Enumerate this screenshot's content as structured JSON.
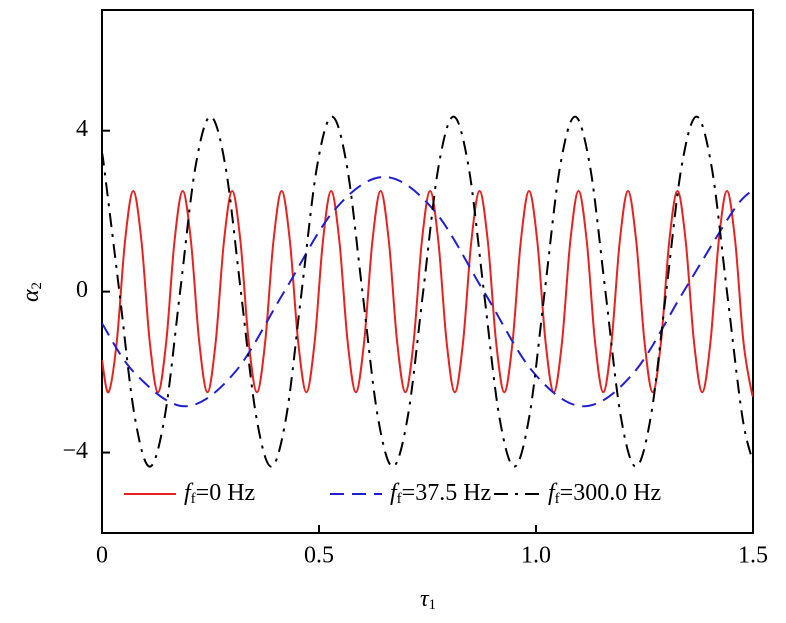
{
  "chart_data": {
    "type": "line",
    "x_label": "τ1",
    "y_label": "α2",
    "xlim": [
      0,
      1.5
    ],
    "ylim": [
      -6,
      7
    ],
    "xticks": [
      0,
      0.5,
      {
        "value": 1,
        "label": "1.0"
      },
      1.5
    ],
    "yticks": [
      {
        "value": -4,
        "label": "−4"
      },
      0,
      4
    ],
    "legend": "bottom",
    "series": [
      {
        "name": "ff=0 Hz",
        "color": "#e8231f",
        "style": "solid",
        "x": [
          0,
          0.015,
          0.034,
          0.053,
          0.072,
          0.091,
          0.11,
          0.129,
          0.148,
          0.167,
          0.186,
          0.205,
          0.224,
          0.243,
          0.262,
          0.281,
          0.3,
          0.319,
          0.338,
          0.357,
          0.376,
          0.395,
          0.414,
          0.433,
          0.452,
          0.471,
          0.49,
          0.509,
          0.528,
          0.547,
          0.566,
          0.585,
          0.604,
          0.623,
          0.642,
          0.661,
          0.68,
          0.699,
          0.718,
          0.737,
          0.756,
          0.775,
          0.794,
          0.813,
          0.832,
          0.851,
          0.87,
          0.889,
          0.908,
          0.927,
          0.946,
          0.965,
          0.984,
          1.003,
          1.022,
          1.041,
          1.06,
          1.079,
          1.098,
          1.117,
          1.136,
          1.155,
          1.174,
          1.193,
          1.212,
          1.231,
          1.25,
          1.269,
          1.288,
          1.307,
          1.326,
          1.345,
          1.364,
          1.383,
          1.402,
          1.421,
          1.44,
          1.459,
          1.478,
          1.497,
          1.5
        ],
        "values": [
          -1.7,
          -2.5,
          -1.25,
          1.25,
          2.5,
          1.25,
          -1.25,
          -2.5,
          -1.25,
          1.25,
          2.5,
          1.25,
          -1.25,
          -2.5,
          -1.25,
          1.25,
          2.5,
          1.25,
          -1.25,
          -2.5,
          -1.25,
          1.25,
          2.5,
          1.25,
          -1.25,
          -2.5,
          -1.25,
          1.25,
          2.5,
          1.25,
          -1.25,
          -2.5,
          -1.25,
          1.25,
          2.5,
          1.25,
          -1.25,
          -2.5,
          -1.25,
          1.25,
          2.5,
          1.25,
          -1.25,
          -2.5,
          -1.25,
          1.25,
          2.5,
          1.25,
          -1.25,
          -2.5,
          -1.25,
          1.25,
          2.5,
          1.25,
          -1.25,
          -2.5,
          -1.25,
          1.25,
          2.5,
          1.25,
          -1.25,
          -2.5,
          -1.25,
          1.25,
          2.5,
          1.25,
          -1.25,
          -2.5,
          -1.25,
          1.25,
          2.5,
          1.25,
          -1.25,
          -2.5,
          -1.25,
          1.25,
          2.5,
          1.25,
          -1.25,
          -2.5,
          -2.5
        ]
      },
      {
        "name": "ff=37.5 Hz",
        "color": "#1f1fd6",
        "style": "dashed",
        "x": [
          0,
          0.075,
          0.19,
          0.305,
          0.42,
          0.535,
          0.65,
          0.765,
          0.88,
          0.995,
          1.11,
          1.225,
          1.34,
          1.455,
          1.5
        ],
        "values": [
          -0.79,
          -2.02,
          -2.85,
          -2.02,
          0,
          2.02,
          2.85,
          2.02,
          0,
          -2.02,
          -2.85,
          -2.02,
          0,
          2.02,
          2.53
        ]
      },
      {
        "name": "ff=300.0 Hz",
        "color": "#000000",
        "style": "dashdot",
        "x": [
          0,
          0.005,
          0.04,
          0.075,
          0.11,
          0.145,
          0.18,
          0.215,
          0.25,
          0.285,
          0.32,
          0.355,
          0.39,
          0.425,
          0.46,
          0.495,
          0.53,
          0.565,
          0.6,
          0.635,
          0.67,
          0.705,
          0.74,
          0.775,
          0.81,
          0.845,
          0.88,
          0.915,
          0.95,
          0.985,
          1.02,
          1.055,
          1.09,
          1.125,
          1.16,
          1.195,
          1.23,
          1.265,
          1.3,
          1.335,
          1.37,
          1.405,
          1.44,
          1.475,
          1.5
        ],
        "values": [
          3.4,
          3.08,
          0,
          -3.08,
          -4.35,
          -3.08,
          0,
          3.08,
          4.35,
          3.08,
          0,
          -3.08,
          -4.35,
          -3.08,
          0,
          3.08,
          4.35,
          3.08,
          0,
          -3.08,
          -4.35,
          -3.08,
          0,
          3.08,
          4.35,
          3.08,
          0,
          -3.08,
          -4.35,
          -3.08,
          0,
          3.08,
          4.35,
          3.08,
          0,
          -3.08,
          -4.35,
          -3.08,
          0,
          3.08,
          4.35,
          3.08,
          0,
          -3.08,
          -4.24
        ]
      }
    ]
  }
}
